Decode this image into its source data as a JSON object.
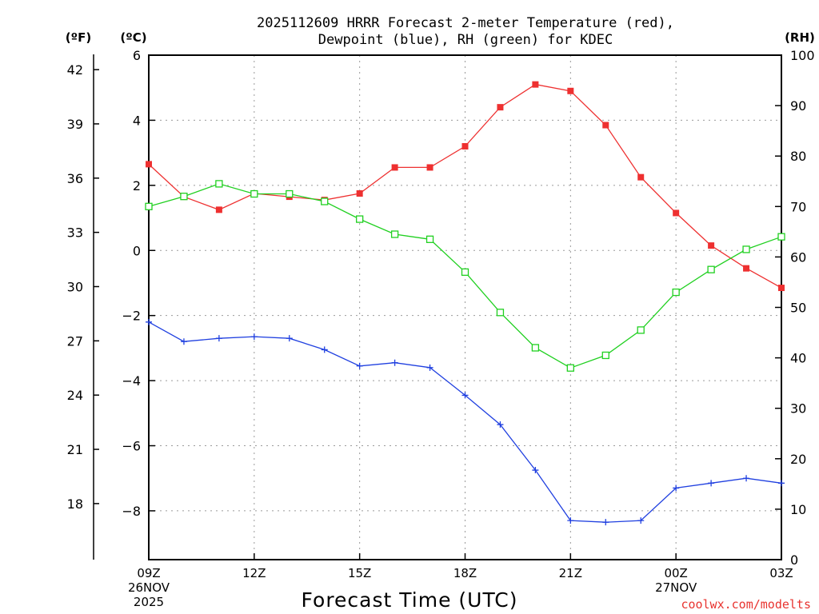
{
  "chart_data": {
    "type": "line",
    "title_line1": "2025112609 HRRR Forecast 2-meter Temperature (red),",
    "title_line2": "Dewpoint (blue), RH (green) for KDEC",
    "xlabel": "Forecast Time (UTC)",
    "credit": "coolwx.com/modelts",
    "unit_left_f": "(ºF)",
    "unit_left_c": "(ºC)",
    "unit_right": "(RH)",
    "hours": [
      0,
      1,
      2,
      3,
      4,
      5,
      6,
      7,
      8,
      9,
      10,
      11,
      12,
      13,
      14,
      15,
      16,
      17,
      18
    ],
    "x_ticks": [
      {
        "hour": 0,
        "label": "09Z",
        "sub1": "26NOV",
        "sub2": "2025"
      },
      {
        "hour": 3,
        "label": "12Z",
        "sub1": "",
        "sub2": ""
      },
      {
        "hour": 6,
        "label": "15Z",
        "sub1": "",
        "sub2": ""
      },
      {
        "hour": 9,
        "label": "18Z",
        "sub1": "",
        "sub2": ""
      },
      {
        "hour": 12,
        "label": "21Z",
        "sub1": "",
        "sub2": ""
      },
      {
        "hour": 15,
        "label": "00Z",
        "sub1": "27NOV",
        "sub2": ""
      },
      {
        "hour": 18,
        "label": "03Z",
        "sub1": "",
        "sub2": ""
      }
    ],
    "ylim_c": [
      -9.5,
      6
    ],
    "ylim_f": [
      14.9,
      42.8
    ],
    "ylim_rh": [
      0,
      100
    ],
    "c_ticks": [
      {
        "v": 6,
        "label": "6"
      },
      {
        "v": 4,
        "label": "4"
      },
      {
        "v": 2,
        "label": "2"
      },
      {
        "v": 0,
        "label": "0"
      },
      {
        "v": -2,
        "label": "−2"
      },
      {
        "v": -4,
        "label": "−4"
      },
      {
        "v": -6,
        "label": "−6"
      },
      {
        "v": -8,
        "label": "−8"
      }
    ],
    "f_ticks": [
      {
        "v": 42,
        "label": "42"
      },
      {
        "v": 39,
        "label": "39"
      },
      {
        "v": 36,
        "label": "36"
      },
      {
        "v": 33,
        "label": "33"
      },
      {
        "v": 30,
        "label": "30"
      },
      {
        "v": 27,
        "label": "27"
      },
      {
        "v": 24,
        "label": "24"
      },
      {
        "v": 21,
        "label": "21"
      },
      {
        "v": 18,
        "label": "18"
      }
    ],
    "rh_ticks": [
      {
        "v": 100,
        "label": "100"
      },
      {
        "v": 90,
        "label": "90"
      },
      {
        "v": 80,
        "label": "80"
      },
      {
        "v": 70,
        "label": "70"
      },
      {
        "v": 60,
        "label": "60"
      },
      {
        "v": 50,
        "label": "50"
      },
      {
        "v": 40,
        "label": "40"
      },
      {
        "v": 30,
        "label": "30"
      },
      {
        "v": 20,
        "label": "20"
      },
      {
        "v": 10,
        "label": "10"
      },
      {
        "v": 0,
        "label": "0"
      }
    ],
    "grid": true,
    "series": [
      {
        "name": "Temperature",
        "axis": "c",
        "color": "#ee3030",
        "marker": "filled-square",
        "values": [
          2.65,
          1.65,
          1.25,
          1.75,
          1.65,
          1.55,
          1.75,
          2.55,
          2.55,
          3.2,
          4.4,
          5.1,
          4.9,
          3.85,
          2.25,
          1.15,
          0.15,
          -0.55,
          -1.15
        ]
      },
      {
        "name": "Dewpoint",
        "axis": "c",
        "color": "#2040e0",
        "marker": "plus",
        "values": [
          -2.2,
          -2.8,
          -2.7,
          -2.65,
          -2.7,
          -3.05,
          -3.55,
          -3.45,
          -3.6,
          -4.45,
          -5.35,
          -6.75,
          -8.3,
          -8.35,
          -8.3,
          -7.3,
          -7.15,
          -7.0,
          -7.15
        ]
      },
      {
        "name": "RH",
        "axis": "rh",
        "color": "#20d020",
        "marker": "open-square",
        "values": [
          70,
          72,
          74.5,
          72.5,
          72.5,
          71,
          67.5,
          64.5,
          63.5,
          57,
          49,
          42,
          38,
          40.5,
          45.5,
          53,
          57.5,
          61.5,
          64
        ]
      }
    ]
  }
}
